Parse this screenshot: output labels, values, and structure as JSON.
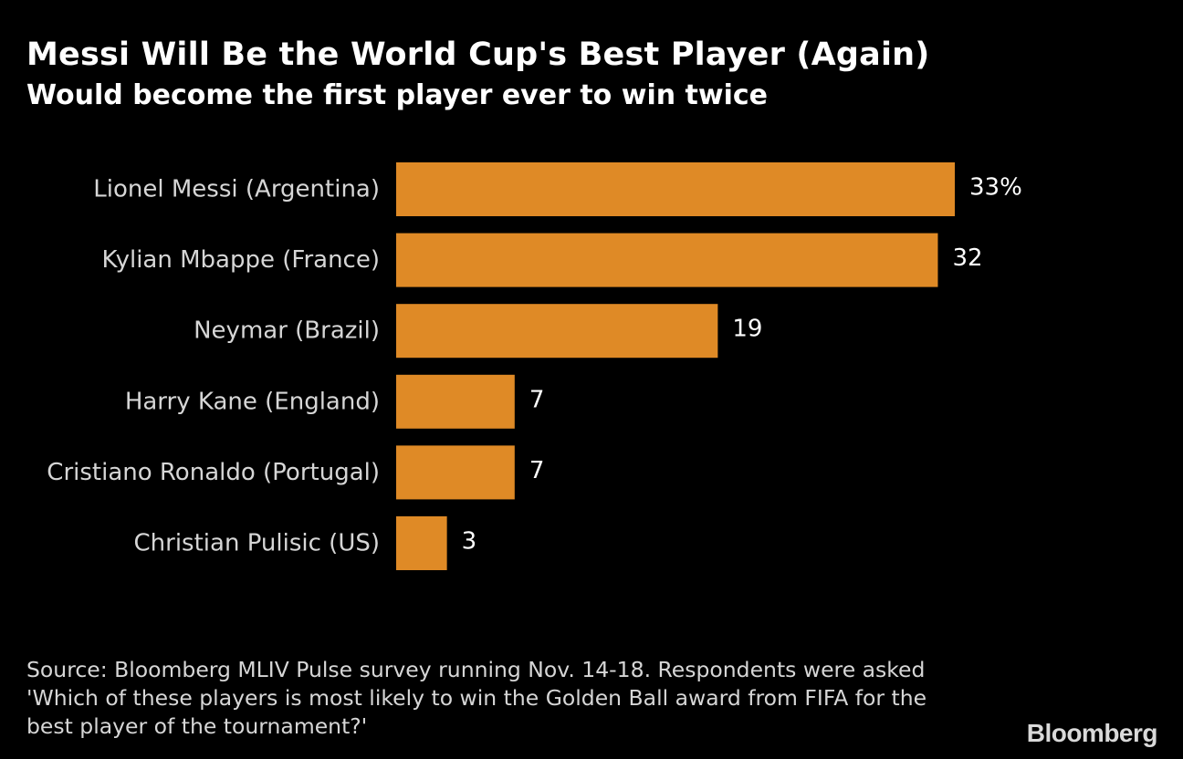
{
  "header": {
    "title": "Messi Will Be the World Cup's Best Player (Again)",
    "subtitle": "Would become the first player ever to win twice"
  },
  "chart_data": {
    "type": "bar",
    "orientation": "horizontal",
    "categories": [
      "Lionel Messi (Argentina)",
      "Kylian Mbappe (France)",
      "Neymar (Brazil)",
      "Harry Kane (England)",
      "Cristiano Ronaldo (Portugal)",
      "Christian Pulisic (US)"
    ],
    "values": [
      33,
      32,
      19,
      7,
      7,
      3
    ],
    "value_labels": [
      "33%",
      "32",
      "19",
      "7",
      "7",
      "3"
    ],
    "unit": "%",
    "title": "Messi Will Be the World Cup's Best Player (Again)",
    "subtitle": "Would become the first player ever to win twice",
    "grid": false,
    "bar_color": "#df8a26"
  },
  "footer": {
    "source": "Source: Bloomberg MLIV Pulse survey running Nov. 14-18. Respondents were asked 'Which of these players is most likely to win the Golden Ball award from FIFA for the best player of the tournament?'",
    "brand": "Bloomberg"
  },
  "colors": {
    "background": "#000000",
    "bar": "#df8a26",
    "text": "#ffffff",
    "muted_text": "#d6d6d6"
  }
}
